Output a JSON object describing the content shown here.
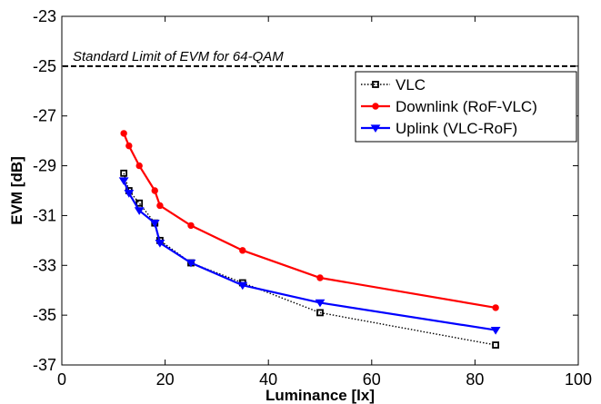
{
  "chart_data": {
    "type": "line",
    "xlabel": "Luminance [lx]",
    "ylabel": "EVM [dB]",
    "xlim": [
      0,
      100
    ],
    "ylim": [
      -37,
      -23
    ],
    "xticks": [
      0,
      20,
      40,
      60,
      80,
      100
    ],
    "yticks": [
      -23,
      -25,
      -27,
      -29,
      -31,
      -33,
      -35,
      -37
    ],
    "grid": false,
    "legend_position": "top-right",
    "reference_line": {
      "y": -25,
      "label": "Standard Limit of EVM for 64-QAM",
      "color": "#000000",
      "style": "dashed"
    },
    "series": [
      {
        "name": "VLC",
        "color": "#000000",
        "style": "dotted",
        "marker": "square",
        "x": [
          12,
          13,
          15,
          18,
          19,
          25,
          35,
          50,
          84
        ],
        "y": [
          -29.3,
          -30.0,
          -30.5,
          -31.3,
          -32.0,
          -32.9,
          -33.7,
          -34.9,
          -36.2
        ]
      },
      {
        "name": "Downlink (RoF-VLC)",
        "color": "#ff0000",
        "style": "solid",
        "marker": "circle",
        "x": [
          12,
          13,
          15,
          18,
          19,
          25,
          35,
          50,
          84
        ],
        "y": [
          -27.7,
          -28.2,
          -29.0,
          -30.0,
          -30.6,
          -31.4,
          -32.4,
          -33.5,
          -34.7
        ]
      },
      {
        "name": "Uplink (VLC-RoF)",
        "color": "#0000ff",
        "style": "solid",
        "marker": "triangle-down",
        "x": [
          12,
          13,
          15,
          18,
          19,
          25,
          35,
          50,
          84
        ],
        "y": [
          -29.6,
          -30.1,
          -30.8,
          -31.3,
          -32.1,
          -32.9,
          -33.8,
          -34.5,
          -35.6
        ]
      }
    ]
  }
}
